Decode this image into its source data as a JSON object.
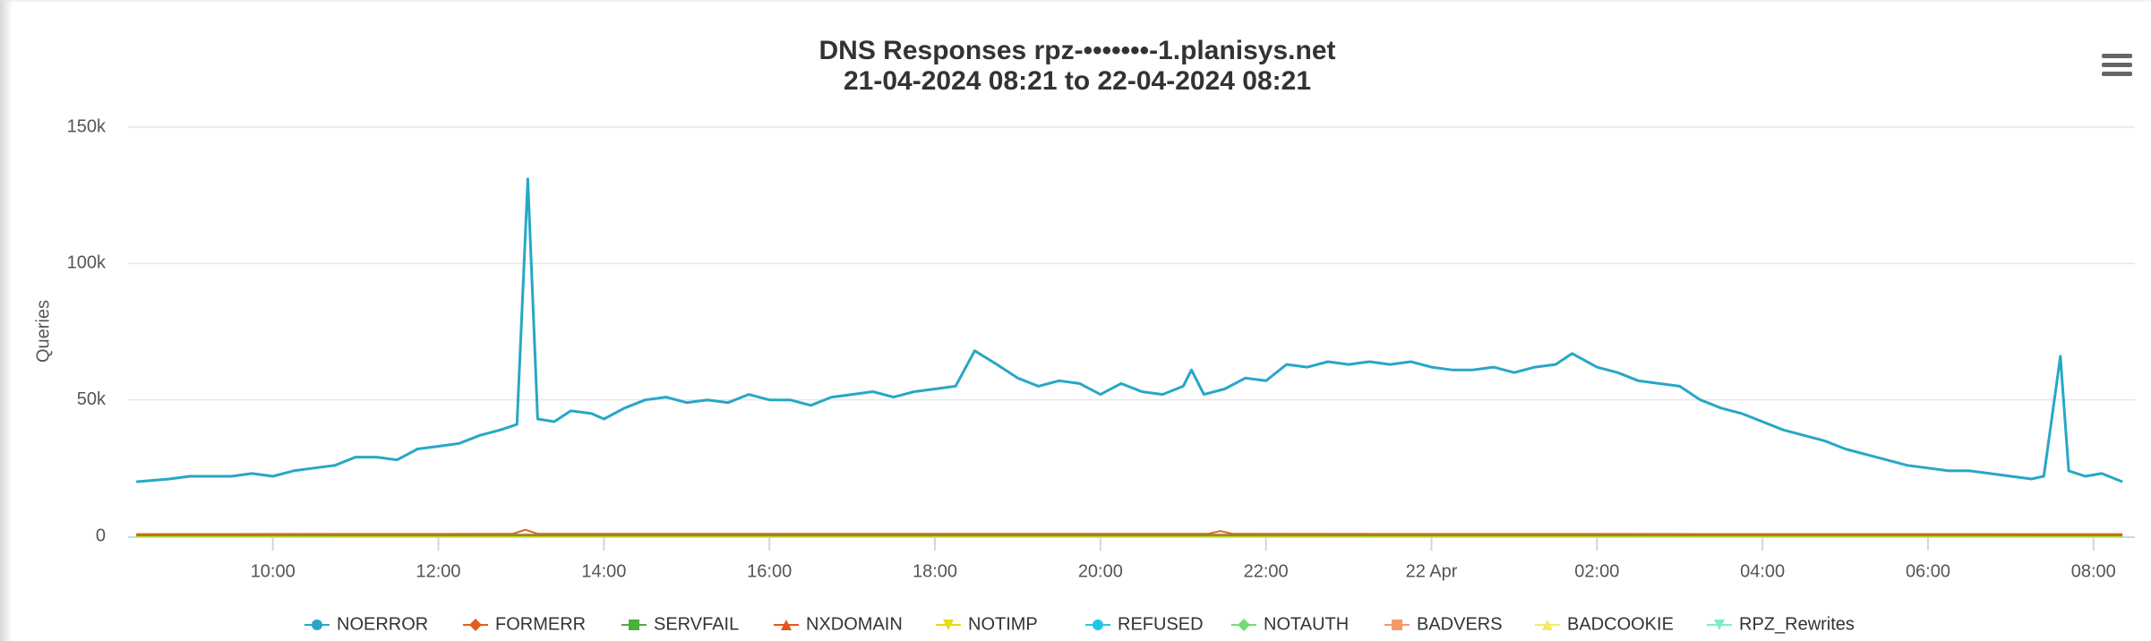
{
  "chart_data": {
    "type": "line",
    "title": "DNS Responses rpz-•••••••-1.planisys.net",
    "subtitle": "21-04-2024 08:21 to 22-04-2024 08:21",
    "y_label": "Queries",
    "xlim": [
      8.25,
      32.5
    ],
    "xticks": [
      {
        "value": 10,
        "label": "10:00"
      },
      {
        "value": 12,
        "label": "12:00"
      },
      {
        "value": 14,
        "label": "14:00"
      },
      {
        "value": 16,
        "label": "16:00"
      },
      {
        "value": 18,
        "label": "18:00"
      },
      {
        "value": 20,
        "label": "20:00"
      },
      {
        "value": 22,
        "label": "22:00"
      },
      {
        "value": 24,
        "label": "22 Apr"
      },
      {
        "value": 26,
        "label": "02:00"
      },
      {
        "value": 28,
        "label": "04:00"
      },
      {
        "value": 30,
        "label": "06:00"
      },
      {
        "value": 32,
        "label": "08:00"
      }
    ],
    "ylim": [
      0,
      150000
    ],
    "yticks": [
      0,
      {
        "value": 50000,
        "label": "50k"
      },
      {
        "value": 100000,
        "label": "100k"
      },
      {
        "value": 150000,
        "label": "150k"
      }
    ],
    "grid": true,
    "legend": "bottom",
    "series": [
      {
        "name": "NOERROR",
        "color": "#27a7c7",
        "symbol": "circle",
        "x": [
          8.35,
          8.75,
          9.0,
          9.25,
          9.5,
          9.75,
          10.0,
          10.25,
          10.5,
          10.75,
          11.0,
          11.25,
          11.5,
          11.75,
          12.0,
          12.25,
          12.5,
          12.75,
          12.95,
          13.08,
          13.2,
          13.4,
          13.6,
          13.85,
          14.0,
          14.25,
          14.5,
          14.75,
          15.0,
          15.25,
          15.5,
          15.75,
          16.0,
          16.25,
          16.5,
          16.75,
          17.0,
          17.25,
          17.5,
          17.75,
          18.0,
          18.25,
          18.48,
          18.75,
          19.0,
          19.25,
          19.5,
          19.75,
          20.0,
          20.25,
          20.5,
          20.75,
          21.0,
          21.1,
          21.25,
          21.5,
          21.75,
          22.0,
          22.25,
          22.5,
          22.75,
          23.0,
          23.25,
          23.5,
          23.75,
          24.0,
          24.25,
          24.5,
          24.75,
          25.0,
          25.25,
          25.5,
          25.7,
          26.0,
          26.25,
          26.5,
          26.75,
          27.0,
          27.25,
          27.5,
          27.75,
          28.0,
          28.25,
          28.5,
          28.75,
          29.0,
          29.25,
          29.5,
          29.75,
          30.0,
          30.25,
          30.5,
          30.75,
          31.0,
          31.25,
          31.4,
          31.6,
          31.7,
          31.9,
          32.1,
          32.35
        ],
        "values": [
          20000,
          21000,
          22000,
          22000,
          22000,
          23000,
          22000,
          24000,
          25000,
          26000,
          29000,
          29000,
          28000,
          32000,
          33000,
          34000,
          37000,
          39000,
          41000,
          131000,
          43000,
          42000,
          46000,
          45000,
          43000,
          47000,
          50000,
          51000,
          49000,
          50000,
          49000,
          52000,
          50000,
          50000,
          48000,
          51000,
          52000,
          53000,
          51000,
          53000,
          54000,
          55000,
          68000,
          63000,
          58000,
          55000,
          57000,
          56000,
          52000,
          56000,
          53000,
          52000,
          55000,
          61000,
          52000,
          54000,
          58000,
          57000,
          63000,
          62000,
          64000,
          63000,
          64000,
          63000,
          64000,
          62000,
          61000,
          61000,
          62000,
          60000,
          62000,
          63000,
          67000,
          62000,
          60000,
          57000,
          56000,
          55000,
          50000,
          47000,
          45000,
          42000,
          39000,
          37000,
          35000,
          32000,
          30000,
          28000,
          26000,
          25000,
          24000,
          24000,
          23000,
          22000,
          21000,
          22000,
          66000,
          24000,
          22000,
          23000,
          20000
        ]
      },
      {
        "name": "FORMERR",
        "color": "#e0601f",
        "symbol": "diamond",
        "x": [
          8.35,
          12.9,
          13.05,
          13.2,
          21.3,
          21.45,
          21.6,
          32.35
        ],
        "values": [
          800,
          900,
          2400,
          900,
          900,
          1900,
          900,
          800
        ]
      },
      {
        "name": "SERVFAIL",
        "color": "#4caf3a",
        "symbol": "square",
        "x": [
          8.35,
          32.35
        ],
        "values": [
          300,
          300
        ]
      },
      {
        "name": "NXDOMAIN",
        "color": "#e6541a",
        "symbol": "triangle",
        "x": [
          8.35,
          32.35
        ],
        "values": [
          600,
          600
        ]
      },
      {
        "name": "NOTIMP",
        "color": "#e5dc1a",
        "symbol": "triangle-down",
        "x": [
          8.35,
          32.35
        ],
        "values": [
          0,
          0
        ]
      },
      {
        "name": "REFUSED",
        "color": "#22c6e8",
        "symbol": "circle",
        "x": [
          8.35,
          32.35
        ],
        "values": [
          100,
          100
        ]
      },
      {
        "name": "NOTAUTH",
        "color": "#74dc74",
        "symbol": "diamond",
        "x": [
          8.35,
          32.35
        ],
        "values": [
          500,
          500
        ]
      },
      {
        "name": "BADVERS",
        "color": "#f5996a",
        "symbol": "square",
        "x": [
          8.35,
          32.35
        ],
        "values": [
          0,
          0
        ]
      },
      {
        "name": "BADCOOKIE",
        "color": "#f2ec66",
        "symbol": "triangle",
        "x": [
          8.35,
          32.35
        ],
        "values": [
          0,
          0
        ]
      },
      {
        "name": "RPZ_Rewrites",
        "color": "#7ceec6",
        "symbol": "triangle-down",
        "x": [
          8.35,
          32.35
        ],
        "values": [
          200,
          200
        ]
      }
    ]
  }
}
